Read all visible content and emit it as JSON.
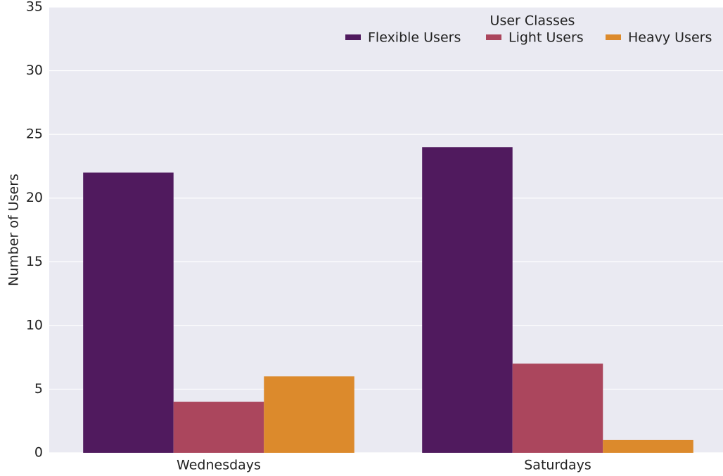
{
  "chart_data": {
    "type": "bar",
    "categories": [
      "Wednesdays",
      "Saturdays"
    ],
    "series": [
      {
        "name": "Flexible Users",
        "color": "#501a5e",
        "values": [
          22,
          24
        ]
      },
      {
        "name": "Light Users",
        "color": "#ab465d",
        "values": [
          4,
          7
        ]
      },
      {
        "name": "Heavy Users",
        "color": "#dc8a2c",
        "values": [
          6,
          1
        ]
      }
    ],
    "y_label": "Number of Users",
    "legend_title": "User Classes",
    "legend": "upper right",
    "ylim": [
      0,
      35
    ],
    "yticks": [
      0,
      5,
      10,
      15,
      20,
      25,
      30,
      35
    ],
    "grid": true
  }
}
